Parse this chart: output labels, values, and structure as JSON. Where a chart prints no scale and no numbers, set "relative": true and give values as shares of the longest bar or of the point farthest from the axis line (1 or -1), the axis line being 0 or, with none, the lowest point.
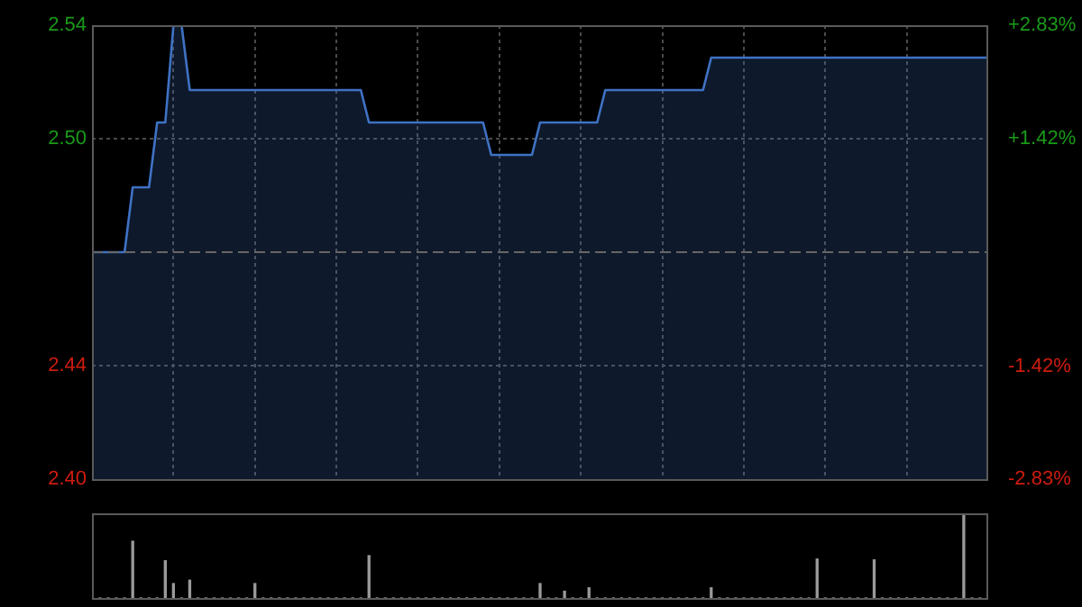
{
  "chart_data": [
    {
      "type": "area",
      "categories": [
        null,
        null,
        null,
        null,
        null,
        null,
        null,
        null,
        null,
        null,
        null,
        null,
        null,
        null,
        null,
        null,
        null,
        null,
        null,
        null,
        null,
        null,
        null,
        null,
        null,
        null,
        null,
        null,
        null,
        null,
        null,
        null,
        null,
        null,
        null,
        null,
        null,
        null,
        null,
        null,
        null,
        null,
        null,
        null,
        null,
        null,
        null,
        null,
        null,
        null,
        null,
        null,
        null,
        null,
        null,
        null,
        null,
        null,
        null,
        null,
        null,
        null,
        null,
        null,
        null,
        null,
        null,
        null,
        null,
        null,
        null,
        null,
        null,
        null,
        null,
        null,
        null,
        null,
        null,
        null,
        null,
        null,
        null,
        null,
        null,
        null,
        null,
        null,
        null,
        null,
        null,
        null,
        null,
        null,
        null,
        null,
        null,
        null,
        null,
        null,
        null,
        null,
        null,
        null,
        null,
        null,
        null,
        null,
        null,
        null,
        null
      ],
      "series": [
        {
          "color": "#3f72c4",
          "values": [
            2.47,
            2.47,
            2.47,
            2.47,
            2.47,
            2.49,
            2.49,
            2.49,
            2.51,
            2.51,
            2.54,
            2.54,
            2.52,
            2.52,
            2.52,
            2.52,
            2.52,
            2.52,
            2.52,
            2.52,
            2.52,
            2.52,
            2.52,
            2.52,
            2.52,
            2.52,
            2.52,
            2.52,
            2.52,
            2.52,
            2.52,
            2.52,
            2.52,
            2.52,
            2.51,
            2.51,
            2.51,
            2.51,
            2.51,
            2.51,
            2.51,
            2.51,
            2.51,
            2.51,
            2.51,
            2.51,
            2.51,
            2.51,
            2.51,
            2.5,
            2.5,
            2.5,
            2.5,
            2.5,
            2.5,
            2.51,
            2.51,
            2.51,
            2.51,
            2.51,
            2.51,
            2.51,
            2.51,
            2.52,
            2.52,
            2.52,
            2.52,
            2.52,
            2.52,
            2.52,
            2.52,
            2.52,
            2.52,
            2.52,
            2.52,
            2.52,
            2.53,
            2.53,
            2.53,
            2.53,
            2.53,
            2.53,
            2.53,
            2.53,
            2.53,
            2.53,
            2.53,
            2.53,
            2.53,
            2.53,
            2.53,
            2.53,
            2.53,
            2.53,
            2.53,
            2.53,
            2.53,
            2.53,
            2.53,
            2.53,
            2.53,
            2.53,
            2.53,
            2.53,
            2.53,
            2.53,
            2.53,
            2.53,
            2.53,
            2.53,
            2.53
          ]
        }
      ],
      "ylim": [
        2.4,
        2.54
      ],
      "yticks": [
        {
          "value": 2.4,
          "label": "2.40"
        },
        {
          "value": 2.435,
          "label": "2.44"
        },
        {
          "value": 2.505,
          "label": "2.50"
        },
        {
          "value": 2.54,
          "label": "2.54"
        }
      ],
      "y2lim": [
        -2.83,
        2.83
      ],
      "y2ticks": [
        {
          "value": -2.83,
          "label": "-2.83%"
        },
        {
          "value": -1.42,
          "label": "-1.42%"
        },
        {
          "value": 1.42,
          "label": "+1.42%"
        },
        {
          "value": 2.83,
          "label": "+2.83%"
        }
      ],
      "ref_lines": [
        {
          "axis": "y",
          "value": 2.47,
          "color": "#666666",
          "line_style": "dashed"
        }
      ],
      "grid": true,
      "legend": false,
      "tick_labels": "y"
    },
    {
      "type": "bar",
      "relative": true,
      "categories": [
        null,
        null,
        null,
        null,
        null,
        null,
        null,
        null,
        null,
        null,
        null,
        null,
        null,
        null,
        null,
        null,
        null,
        null,
        null,
        null,
        null,
        null,
        null,
        null,
        null,
        null,
        null,
        null,
        null,
        null,
        null,
        null,
        null,
        null,
        null,
        null,
        null,
        null,
        null,
        null,
        null,
        null,
        null,
        null,
        null,
        null,
        null,
        null,
        null,
        null,
        null,
        null,
        null,
        null,
        null,
        null,
        null,
        null,
        null,
        null,
        null,
        null,
        null,
        null,
        null,
        null,
        null,
        null,
        null,
        null,
        null,
        null,
        null,
        null,
        null,
        null,
        null,
        null,
        null,
        null,
        null,
        null,
        null,
        null,
        null,
        null,
        null,
        null,
        null,
        null,
        null,
        null,
        null,
        null,
        null,
        null,
        null,
        null,
        null,
        null,
        null,
        null,
        null,
        null,
        null,
        null,
        null,
        null,
        null,
        null,
        null
      ],
      "series": [
        {
          "color": "#9a9a9a",
          "values": [
            0,
            0,
            0,
            0,
            0,
            0.67,
            0,
            0,
            0,
            0.44,
            0.17,
            0,
            0.21,
            0,
            0,
            0,
            0,
            0,
            0,
            0,
            0.17,
            0,
            0,
            0,
            0,
            0,
            0,
            0,
            0,
            0,
            0,
            0,
            0,
            0,
            0.5,
            0,
            0,
            0,
            0,
            0,
            0,
            0,
            0,
            0,
            0,
            0,
            0,
            0,
            0,
            0,
            0,
            0,
            0,
            0,
            0,
            0.17,
            0,
            0,
            0.08,
            0,
            0,
            0.12,
            0,
            0,
            0,
            0,
            0,
            0,
            0,
            0,
            0,
            0,
            0,
            0,
            0,
            0,
            0.12,
            0,
            0,
            0,
            0,
            0,
            0,
            0,
            0,
            0,
            0,
            0,
            0,
            0.46,
            0,
            0,
            0,
            0,
            0,
            0,
            0.45,
            0,
            0,
            0,
            0,
            0,
            0,
            0,
            0,
            0,
            0,
            1,
            0,
            0,
            0
          ]
        }
      ],
      "legend": false,
      "tick_labels": false
    }
  ]
}
